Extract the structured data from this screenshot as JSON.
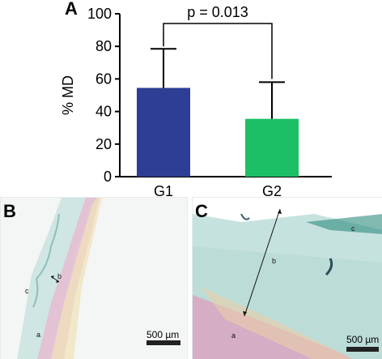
{
  "colors": {
    "g1": "#2e3e94",
    "g2": "#1cbf66",
    "axis": "#000000"
  },
  "chart_data": {
    "type": "bar",
    "categories": [
      "G1",
      "G2"
    ],
    "values": [
      54.5,
      35.5
    ],
    "error_upper": [
      78.5,
      58.0
    ],
    "ylabel": "% MD",
    "ylim": [
      0,
      100
    ],
    "yticks": [
      0,
      20,
      40,
      60,
      80,
      100
    ],
    "annotation": "p = 0.013",
    "grid": false
  },
  "panels": {
    "a": "A",
    "b": "B",
    "c": "C"
  },
  "micro_b": {
    "scale_label": "500 µm",
    "layer_a": "a",
    "layer_b": "b",
    "layer_c": "c"
  },
  "micro_c": {
    "scale_label": "500 µm",
    "layer_a": "a",
    "layer_b": "b",
    "layer_c": "c"
  }
}
